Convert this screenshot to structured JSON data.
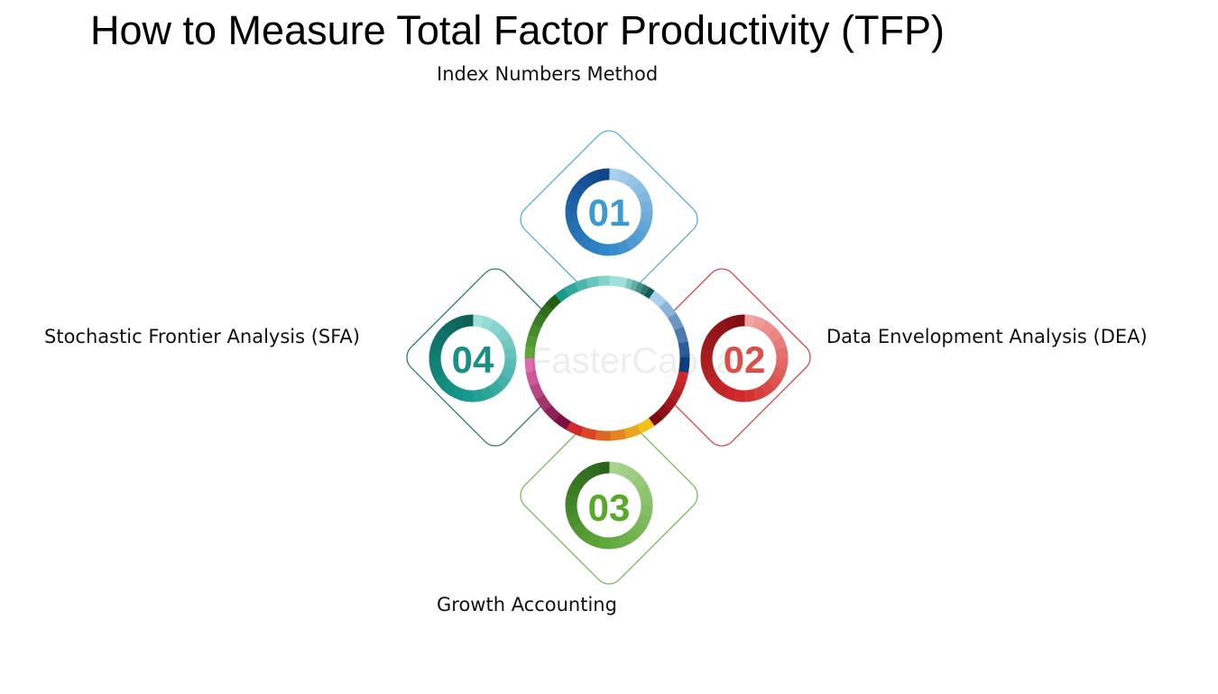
{
  "title": "How to Measure Total Factor Productivity (TFP)",
  "steps": [
    {
      "number": "01",
      "label": "Index Numbers Method",
      "color": "#2f86c8",
      "dark": "#0d3f86",
      "light": "#a9d0ec",
      "text_color": "#3c9ad2",
      "border": "#5aaedc"
    },
    {
      "number": "02",
      "label": "Data Envelopment Analysis (DEA)",
      "color": "#d12a2a",
      "dark": "#7a0c12",
      "light": "#f2a4a0",
      "text_color": "#d9504a",
      "border": "#d8474a"
    },
    {
      "number": "03",
      "label": "Growth Accounting",
      "color": "#5ea83a",
      "dark": "#245e15",
      "light": "#a8d48e",
      "text_color": "#58a82a",
      "border": "#79be58"
    },
    {
      "number": "04",
      "label": "Stochastic Frontier Analysis (SFA)",
      "color": "#159a8c",
      "dark": "#0d5b54",
      "light": "#9fe0dc",
      "text_color": "#1b8f86",
      "border": "#2f7e6a"
    }
  ],
  "watermark": "FasterCapital"
}
